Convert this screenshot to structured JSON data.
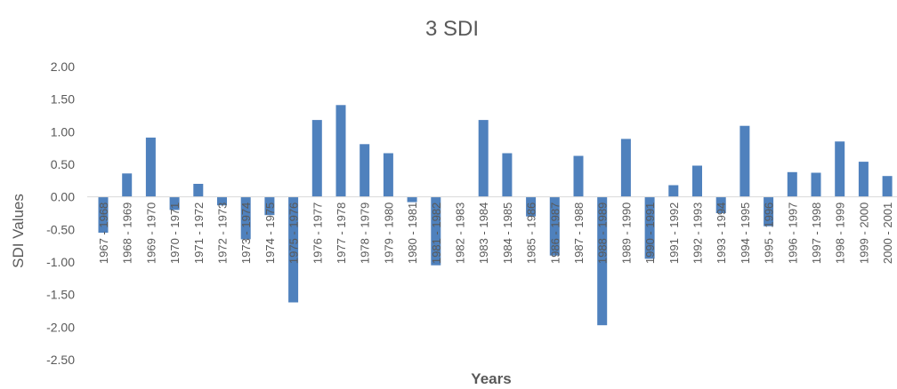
{
  "chart_data": {
    "type": "bar",
    "title": "3 SDI",
    "xlabel": "Years",
    "ylabel": "SDI Values",
    "ylim": [
      -2.5,
      2.0
    ],
    "ytick_step": 0.5,
    "yticks": [
      "2.00",
      "1.50",
      "1.00",
      "0.50",
      "0.00",
      "-0.50",
      "-1.00",
      "-1.50",
      "-2.00",
      "-2.50"
    ],
    "grid": false,
    "legend": "none",
    "bar_color": "#4f81bd",
    "categories": [
      "1967 - 1968",
      "1968 - 1969",
      "1969 - 1970",
      "1970 - 1971",
      "1971 - 1972",
      "1972 - 1973",
      "1973 - 1974",
      "1974 - 1975",
      "1975 - 1976",
      "1976 - 1977",
      "1977 - 1978",
      "1978 - 1979",
      "1979 - 1980",
      "1980 - 1981",
      "1981 - 1982",
      "1982 - 1983",
      "1983 - 1984",
      "1984 - 1985",
      "1985 - 1986",
      "1986 - 1987",
      "1987 - 1988",
      "1988 - 1989",
      "1989 - 1990",
      "1990 - 1991",
      "1991 - 1992",
      "1992 - 1993",
      "1993 - 1994",
      "1994 - 1995",
      "1995 - 1996",
      "1996 - 1997",
      "1997 - 1998",
      "1998 - 1999",
      "1999 - 2000",
      "2000 - 2001"
    ],
    "values": [
      -0.55,
      0.36,
      0.91,
      -0.2,
      0.2,
      -0.13,
      -0.65,
      -0.28,
      -1.62,
      1.18,
      1.41,
      0.81,
      0.67,
      -0.08,
      -1.05,
      0.0,
      1.18,
      0.67,
      -0.3,
      -0.9,
      0.63,
      -1.97,
      0.89,
      -0.95,
      0.18,
      0.48,
      -0.25,
      1.09,
      -0.45,
      0.38,
      0.37,
      0.85,
      0.54,
      0.32
    ]
  }
}
